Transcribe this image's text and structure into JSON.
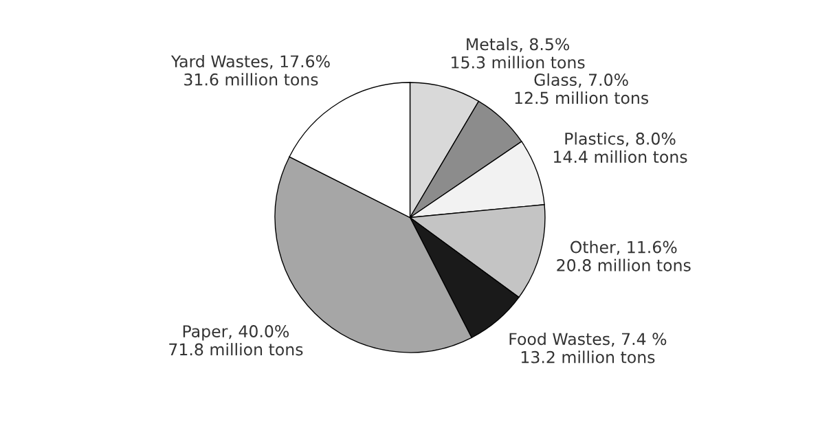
{
  "chart_data": {
    "type": "pie",
    "categories": [
      "Metals, 8.5%\n15.3 million tons",
      "Glass, 7.0%\n12.5 million tons",
      "Plastics, 8.0%\n14.4 million tons",
      "Other, 11.6%\n20.8 million tons",
      "Food Wastes, 7.4 %\n13.2 million tons",
      "Paper, 40.0%\n71.8 million tons",
      "Yard Wastes, 17.6%\n31.6 million tons"
    ],
    "values": [
      8.5,
      7.0,
      8.0,
      11.6,
      7.4,
      40.0,
      17.6
    ],
    "colors": [
      "#d9d9d9",
      "#8c8c8c",
      "#f2f2f2",
      "#c4c4c4",
      "#1a1a1a",
      "#a6a6a6",
      "#ffffff"
    ]
  }
}
